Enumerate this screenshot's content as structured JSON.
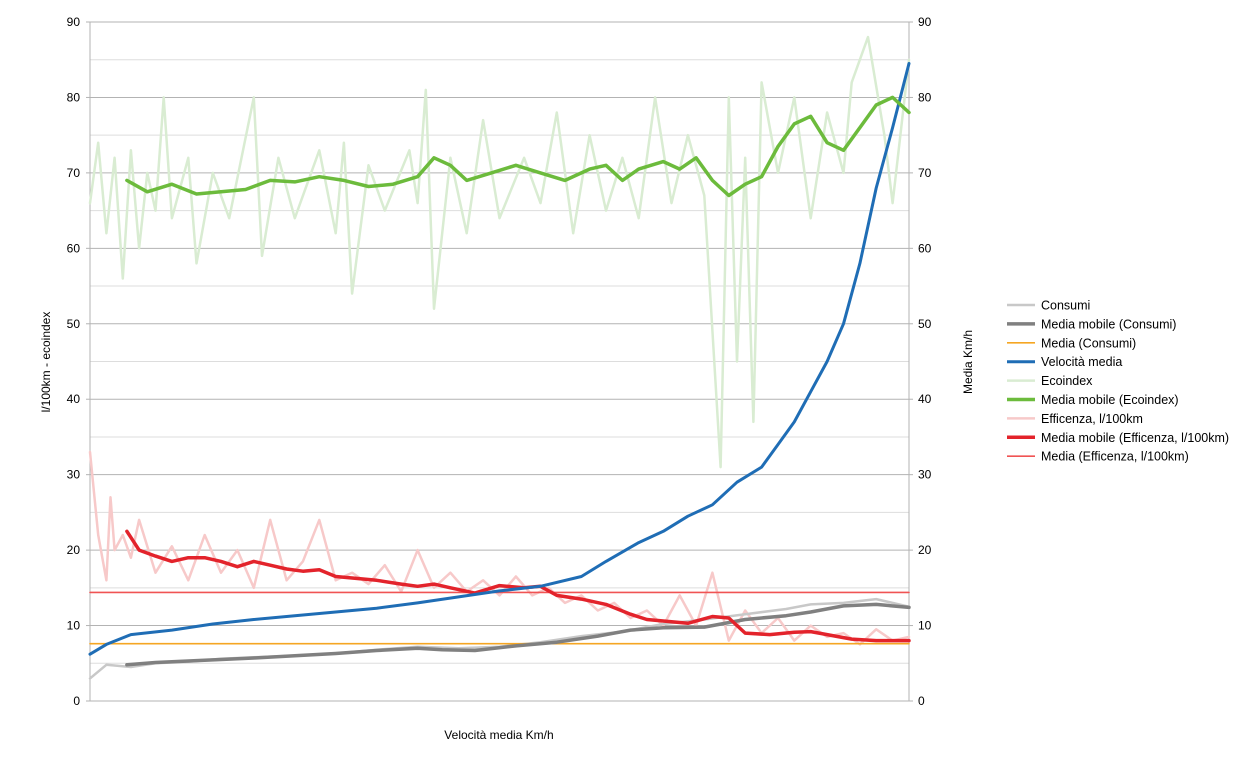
{
  "chart_data": {
    "type": "line",
    "xlabel": "Velocità media Km/h",
    "ylabel_left": "l/100km - ecoindex",
    "ylabel_right": "Media Km/h",
    "ylim_left": [
      0,
      90
    ],
    "ylim_right": [
      0,
      90
    ],
    "yticks": [
      0,
      10,
      20,
      30,
      40,
      50,
      60,
      70,
      80,
      90
    ],
    "grid": true,
    "legend_position": "right",
    "x_range": [
      0,
      1
    ],
    "series": [
      {
        "name": "Consumi",
        "color": "#c8c8c8",
        "axis": "left",
        "points": [
          [
            0.0,
            3.0
          ],
          [
            0.02,
            4.8
          ],
          [
            0.05,
            4.5
          ],
          [
            0.08,
            5.0
          ],
          [
            0.12,
            5.2
          ],
          [
            0.16,
            5.6
          ],
          [
            0.2,
            5.8
          ],
          [
            0.25,
            6.0
          ],
          [
            0.3,
            6.3
          ],
          [
            0.35,
            6.8
          ],
          [
            0.4,
            7.2
          ],
          [
            0.45,
            7.0
          ],
          [
            0.5,
            7.2
          ],
          [
            0.55,
            7.8
          ],
          [
            0.6,
            8.6
          ],
          [
            0.65,
            9.2
          ],
          [
            0.7,
            10.2
          ],
          [
            0.75,
            10.8
          ],
          [
            0.8,
            11.5
          ],
          [
            0.85,
            12.2
          ],
          [
            0.88,
            12.8
          ],
          [
            0.92,
            13.0
          ],
          [
            0.96,
            13.5
          ],
          [
            1.0,
            12.5
          ]
        ]
      },
      {
        "name": "Media mobile (Consumi)",
        "color": "#808080",
        "axis": "left",
        "points": [
          [
            0.045,
            4.8
          ],
          [
            0.08,
            5.1
          ],
          [
            0.12,
            5.3
          ],
          [
            0.16,
            5.5
          ],
          [
            0.2,
            5.7
          ],
          [
            0.25,
            6.0
          ],
          [
            0.3,
            6.3
          ],
          [
            0.35,
            6.7
          ],
          [
            0.4,
            7.0
          ],
          [
            0.43,
            6.8
          ],
          [
            0.47,
            6.7
          ],
          [
            0.52,
            7.3
          ],
          [
            0.57,
            7.8
          ],
          [
            0.62,
            8.6
          ],
          [
            0.66,
            9.4
          ],
          [
            0.7,
            9.7
          ],
          [
            0.75,
            9.8
          ],
          [
            0.8,
            10.8
          ],
          [
            0.85,
            11.3
          ],
          [
            0.88,
            11.8
          ],
          [
            0.92,
            12.6
          ],
          [
            0.96,
            12.8
          ],
          [
            1.0,
            12.4
          ]
        ]
      },
      {
        "name": "Media (Consumi)",
        "color": "#f5a623",
        "axis": "left",
        "points": [
          [
            0.0,
            7.6
          ],
          [
            1.0,
            7.6
          ]
        ]
      },
      {
        "name": "Velocità media",
        "color": "#1f6db5",
        "axis": "right",
        "points": [
          [
            0.0,
            6.2
          ],
          [
            0.02,
            7.5
          ],
          [
            0.05,
            8.8
          ],
          [
            0.1,
            9.4
          ],
          [
            0.15,
            10.2
          ],
          [
            0.2,
            10.8
          ],
          [
            0.25,
            11.3
          ],
          [
            0.3,
            11.8
          ],
          [
            0.35,
            12.3
          ],
          [
            0.4,
            13.0
          ],
          [
            0.45,
            13.8
          ],
          [
            0.5,
            14.6
          ],
          [
            0.55,
            15.2
          ],
          [
            0.6,
            16.5
          ],
          [
            0.63,
            18.5
          ],
          [
            0.67,
            21.0
          ],
          [
            0.7,
            22.5
          ],
          [
            0.73,
            24.5
          ],
          [
            0.76,
            26.0
          ],
          [
            0.79,
            29.0
          ],
          [
            0.82,
            31.0
          ],
          [
            0.84,
            34.0
          ],
          [
            0.86,
            37.0
          ],
          [
            0.88,
            41.0
          ],
          [
            0.9,
            45.0
          ],
          [
            0.92,
            50.0
          ],
          [
            0.94,
            58.0
          ],
          [
            0.96,
            68.0
          ],
          [
            0.98,
            76.0
          ],
          [
            1.0,
            84.5
          ]
        ]
      },
      {
        "name": "Ecoindex",
        "color": "#d9ecd2",
        "axis": "left",
        "points": [
          [
            0.0,
            66.0
          ],
          [
            0.01,
            74.0
          ],
          [
            0.02,
            62.0
          ],
          [
            0.03,
            72.0
          ],
          [
            0.04,
            56.0
          ],
          [
            0.05,
            73.0
          ],
          [
            0.06,
            60.0
          ],
          [
            0.07,
            70.0
          ],
          [
            0.08,
            65.0
          ],
          [
            0.09,
            80.0
          ],
          [
            0.1,
            64.0
          ],
          [
            0.12,
            72.0
          ],
          [
            0.13,
            58.0
          ],
          [
            0.15,
            70.0
          ],
          [
            0.17,
            64.0
          ],
          [
            0.2,
            80.0
          ],
          [
            0.21,
            59.0
          ],
          [
            0.23,
            72.0
          ],
          [
            0.25,
            64.0
          ],
          [
            0.28,
            73.0
          ],
          [
            0.3,
            62.0
          ],
          [
            0.31,
            74.0
          ],
          [
            0.32,
            54.0
          ],
          [
            0.34,
            71.0
          ],
          [
            0.36,
            65.0
          ],
          [
            0.39,
            73.0
          ],
          [
            0.4,
            66.0
          ],
          [
            0.41,
            81.0
          ],
          [
            0.42,
            52.0
          ],
          [
            0.44,
            72.0
          ],
          [
            0.46,
            62.0
          ],
          [
            0.48,
            77.0
          ],
          [
            0.5,
            64.0
          ],
          [
            0.53,
            72.0
          ],
          [
            0.55,
            66.0
          ],
          [
            0.57,
            78.0
          ],
          [
            0.59,
            62.0
          ],
          [
            0.61,
            75.0
          ],
          [
            0.63,
            65.0
          ],
          [
            0.65,
            72.0
          ],
          [
            0.67,
            64.0
          ],
          [
            0.69,
            80.0
          ],
          [
            0.71,
            66.0
          ],
          [
            0.73,
            75.0
          ],
          [
            0.75,
            67.0
          ],
          [
            0.77,
            31.0
          ],
          [
            0.78,
            80.0
          ],
          [
            0.79,
            45.0
          ],
          [
            0.8,
            72.0
          ],
          [
            0.81,
            37.0
          ],
          [
            0.82,
            82.0
          ],
          [
            0.84,
            70.0
          ],
          [
            0.86,
            80.0
          ],
          [
            0.88,
            64.0
          ],
          [
            0.9,
            78.0
          ],
          [
            0.92,
            70.0
          ],
          [
            0.93,
            82.0
          ],
          [
            0.95,
            88.0
          ],
          [
            0.97,
            75.0
          ],
          [
            0.98,
            66.0
          ],
          [
            1.0,
            85.0
          ]
        ]
      },
      {
        "name": "Media mobile (Ecoindex)",
        "color": "#6cbb3c",
        "axis": "left",
        "points": [
          [
            0.045,
            69.0
          ],
          [
            0.07,
            67.5
          ],
          [
            0.1,
            68.5
          ],
          [
            0.13,
            67.2
          ],
          [
            0.16,
            67.5
          ],
          [
            0.19,
            67.8
          ],
          [
            0.22,
            69.0
          ],
          [
            0.25,
            68.8
          ],
          [
            0.28,
            69.5
          ],
          [
            0.31,
            69.0
          ],
          [
            0.34,
            68.2
          ],
          [
            0.37,
            68.5
          ],
          [
            0.4,
            69.5
          ],
          [
            0.42,
            72.0
          ],
          [
            0.44,
            71.0
          ],
          [
            0.46,
            69.0
          ],
          [
            0.49,
            70.0
          ],
          [
            0.52,
            71.0
          ],
          [
            0.55,
            70.0
          ],
          [
            0.58,
            69.0
          ],
          [
            0.61,
            70.5
          ],
          [
            0.63,
            71.0
          ],
          [
            0.65,
            69.0
          ],
          [
            0.67,
            70.5
          ],
          [
            0.7,
            71.5
          ],
          [
            0.72,
            70.5
          ],
          [
            0.74,
            72.0
          ],
          [
            0.76,
            69.0
          ],
          [
            0.78,
            67.0
          ],
          [
            0.8,
            68.5
          ],
          [
            0.82,
            69.5
          ],
          [
            0.84,
            73.5
          ],
          [
            0.86,
            76.5
          ],
          [
            0.88,
            77.5
          ],
          [
            0.9,
            74.0
          ],
          [
            0.92,
            73.0
          ],
          [
            0.94,
            76.0
          ],
          [
            0.96,
            79.0
          ],
          [
            0.98,
            80.0
          ],
          [
            1.0,
            78.0
          ]
        ]
      },
      {
        "name": "Efficenza, l/100km",
        "color": "#f7c9c9",
        "axis": "left",
        "points": [
          [
            0.0,
            33.0
          ],
          [
            0.01,
            22.0
          ],
          [
            0.02,
            16.0
          ],
          [
            0.025,
            27.0
          ],
          [
            0.03,
            20.0
          ],
          [
            0.04,
            22.0
          ],
          [
            0.05,
            19.0
          ],
          [
            0.06,
            24.0
          ],
          [
            0.08,
            17.0
          ],
          [
            0.1,
            20.5
          ],
          [
            0.12,
            16.0
          ],
          [
            0.14,
            22.0
          ],
          [
            0.16,
            17.0
          ],
          [
            0.18,
            20.0
          ],
          [
            0.2,
            15.0
          ],
          [
            0.22,
            24.0
          ],
          [
            0.24,
            16.0
          ],
          [
            0.26,
            18.5
          ],
          [
            0.28,
            24.0
          ],
          [
            0.3,
            16.0
          ],
          [
            0.32,
            17.0
          ],
          [
            0.34,
            15.5
          ],
          [
            0.36,
            18.0
          ],
          [
            0.38,
            14.5
          ],
          [
            0.4,
            20.0
          ],
          [
            0.42,
            15.0
          ],
          [
            0.44,
            17.0
          ],
          [
            0.46,
            14.5
          ],
          [
            0.48,
            16.0
          ],
          [
            0.5,
            14.0
          ],
          [
            0.52,
            16.5
          ],
          [
            0.54,
            14.0
          ],
          [
            0.56,
            15.0
          ],
          [
            0.58,
            13.0
          ],
          [
            0.6,
            14.0
          ],
          [
            0.62,
            12.0
          ],
          [
            0.64,
            13.0
          ],
          [
            0.66,
            11.0
          ],
          [
            0.68,
            12.0
          ],
          [
            0.7,
            10.0
          ],
          [
            0.72,
            14.0
          ],
          [
            0.74,
            10.0
          ],
          [
            0.76,
            17.0
          ],
          [
            0.78,
            8.0
          ],
          [
            0.8,
            12.0
          ],
          [
            0.82,
            9.0
          ],
          [
            0.84,
            11.0
          ],
          [
            0.86,
            8.0
          ],
          [
            0.88,
            10.0
          ],
          [
            0.9,
            8.5
          ],
          [
            0.92,
            9.0
          ],
          [
            0.94,
            7.5
          ],
          [
            0.96,
            9.5
          ],
          [
            0.98,
            8.0
          ],
          [
            1.0,
            8.5
          ]
        ]
      },
      {
        "name": "Media mobile (Efficenza, l/100km)",
        "color": "#e3232b",
        "axis": "left",
        "points": [
          [
            0.045,
            22.5
          ],
          [
            0.06,
            20.0
          ],
          [
            0.08,
            19.2
          ],
          [
            0.1,
            18.5
          ],
          [
            0.12,
            19.0
          ],
          [
            0.14,
            19.0
          ],
          [
            0.16,
            18.5
          ],
          [
            0.18,
            17.8
          ],
          [
            0.2,
            18.5
          ],
          [
            0.22,
            18.0
          ],
          [
            0.24,
            17.5
          ],
          [
            0.26,
            17.2
          ],
          [
            0.28,
            17.4
          ],
          [
            0.3,
            16.5
          ],
          [
            0.33,
            16.2
          ],
          [
            0.35,
            16.0
          ],
          [
            0.38,
            15.5
          ],
          [
            0.4,
            15.2
          ],
          [
            0.42,
            15.5
          ],
          [
            0.44,
            15.0
          ],
          [
            0.47,
            14.3
          ],
          [
            0.5,
            15.3
          ],
          [
            0.53,
            15.0
          ],
          [
            0.55,
            15.2
          ],
          [
            0.57,
            14.0
          ],
          [
            0.6,
            13.5
          ],
          [
            0.63,
            12.8
          ],
          [
            0.66,
            11.5
          ],
          [
            0.68,
            10.8
          ],
          [
            0.7,
            10.6
          ],
          [
            0.73,
            10.3
          ],
          [
            0.76,
            11.2
          ],
          [
            0.78,
            11.0
          ],
          [
            0.8,
            9.0
          ],
          [
            0.83,
            8.8
          ],
          [
            0.86,
            9.1
          ],
          [
            0.88,
            9.2
          ],
          [
            0.9,
            8.8
          ],
          [
            0.93,
            8.2
          ],
          [
            0.96,
            8.0
          ],
          [
            1.0,
            8.0
          ]
        ]
      },
      {
        "name": "Media (Efficenza, l/100km)",
        "color": "#f05454",
        "axis": "left",
        "points": [
          [
            0.0,
            14.4
          ],
          [
            1.0,
            14.4
          ]
        ]
      }
    ]
  }
}
